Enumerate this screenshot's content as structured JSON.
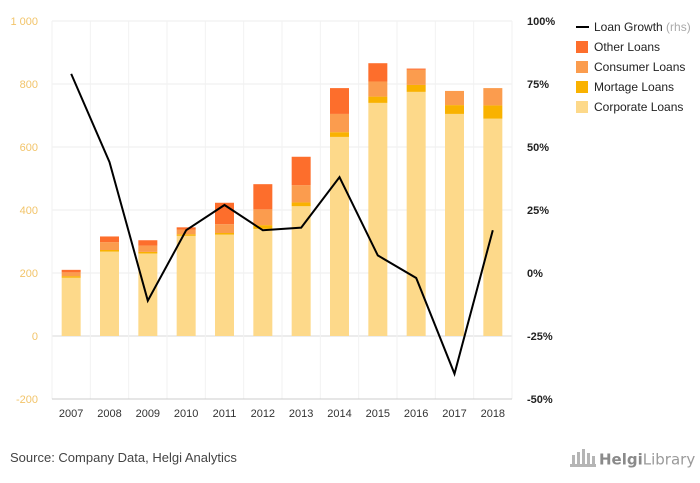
{
  "chart_data": {
    "type": "bar",
    "stacked": true,
    "categories": [
      "2007",
      "2008",
      "2009",
      "2010",
      "2011",
      "2012",
      "2013",
      "2014",
      "2015",
      "2016",
      "2017",
      "2018"
    ],
    "left_axis": {
      "ylim": [
        -200,
        1000
      ],
      "ticks": [
        -200,
        0,
        200,
        400,
        600,
        800,
        1000
      ],
      "tick_labels": [
        "-200",
        "0",
        "200",
        "400",
        "600",
        "800",
        "1 000"
      ]
    },
    "right_axis": {
      "ylim": [
        -50,
        100
      ],
      "ticks": [
        -50,
        -25,
        0,
        25,
        50,
        75,
        100
      ],
      "tick_labels": [
        "-50%",
        "-25%",
        "0%",
        "25%",
        "50%",
        "75%",
        "100%"
      ]
    },
    "series": [
      {
        "name": "Corporate Loans",
        "type": "bar",
        "color": "#fdd98a",
        "values": [
          185,
          268,
          262,
          318,
          322,
          340,
          412,
          632,
          740,
          775,
          705,
          690
        ]
      },
      {
        "name": "Mortage Loans",
        "type": "bar",
        "color": "#f9b200",
        "values": [
          5,
          5,
          5,
          5,
          5,
          12,
          12,
          15,
          20,
          22,
          28,
          42
        ]
      },
      {
        "name": "Consumer Loans",
        "type": "bar",
        "color": "#fb9c4e",
        "values": [
          12,
          25,
          20,
          15,
          28,
          50,
          55,
          58,
          48,
          48,
          45,
          55
        ]
      },
      {
        "name": "Other Loans",
        "type": "bar",
        "color": "#fd6e2c",
        "values": [
          8,
          18,
          17,
          7,
          68,
          80,
          90,
          82,
          58,
          4,
          0,
          0
        ]
      },
      {
        "name": "Loan Growth",
        "note": "(rhs)",
        "type": "line",
        "axis": "right",
        "color": "#000000",
        "values": [
          79,
          44,
          -11,
          17,
          27,
          17,
          18,
          38,
          7,
          -2,
          -40,
          17
        ]
      }
    ],
    "grid": true,
    "legend": "top-right"
  },
  "legend_order": [
    "Loan Growth",
    "Other Loans",
    "Consumer Loans",
    "Mortage Loans",
    "Corporate Loans"
  ],
  "footer": {
    "source": "Source: Company Data, Helgi Analytics",
    "brand_a": "Helgi",
    "brand_b": "Library"
  }
}
